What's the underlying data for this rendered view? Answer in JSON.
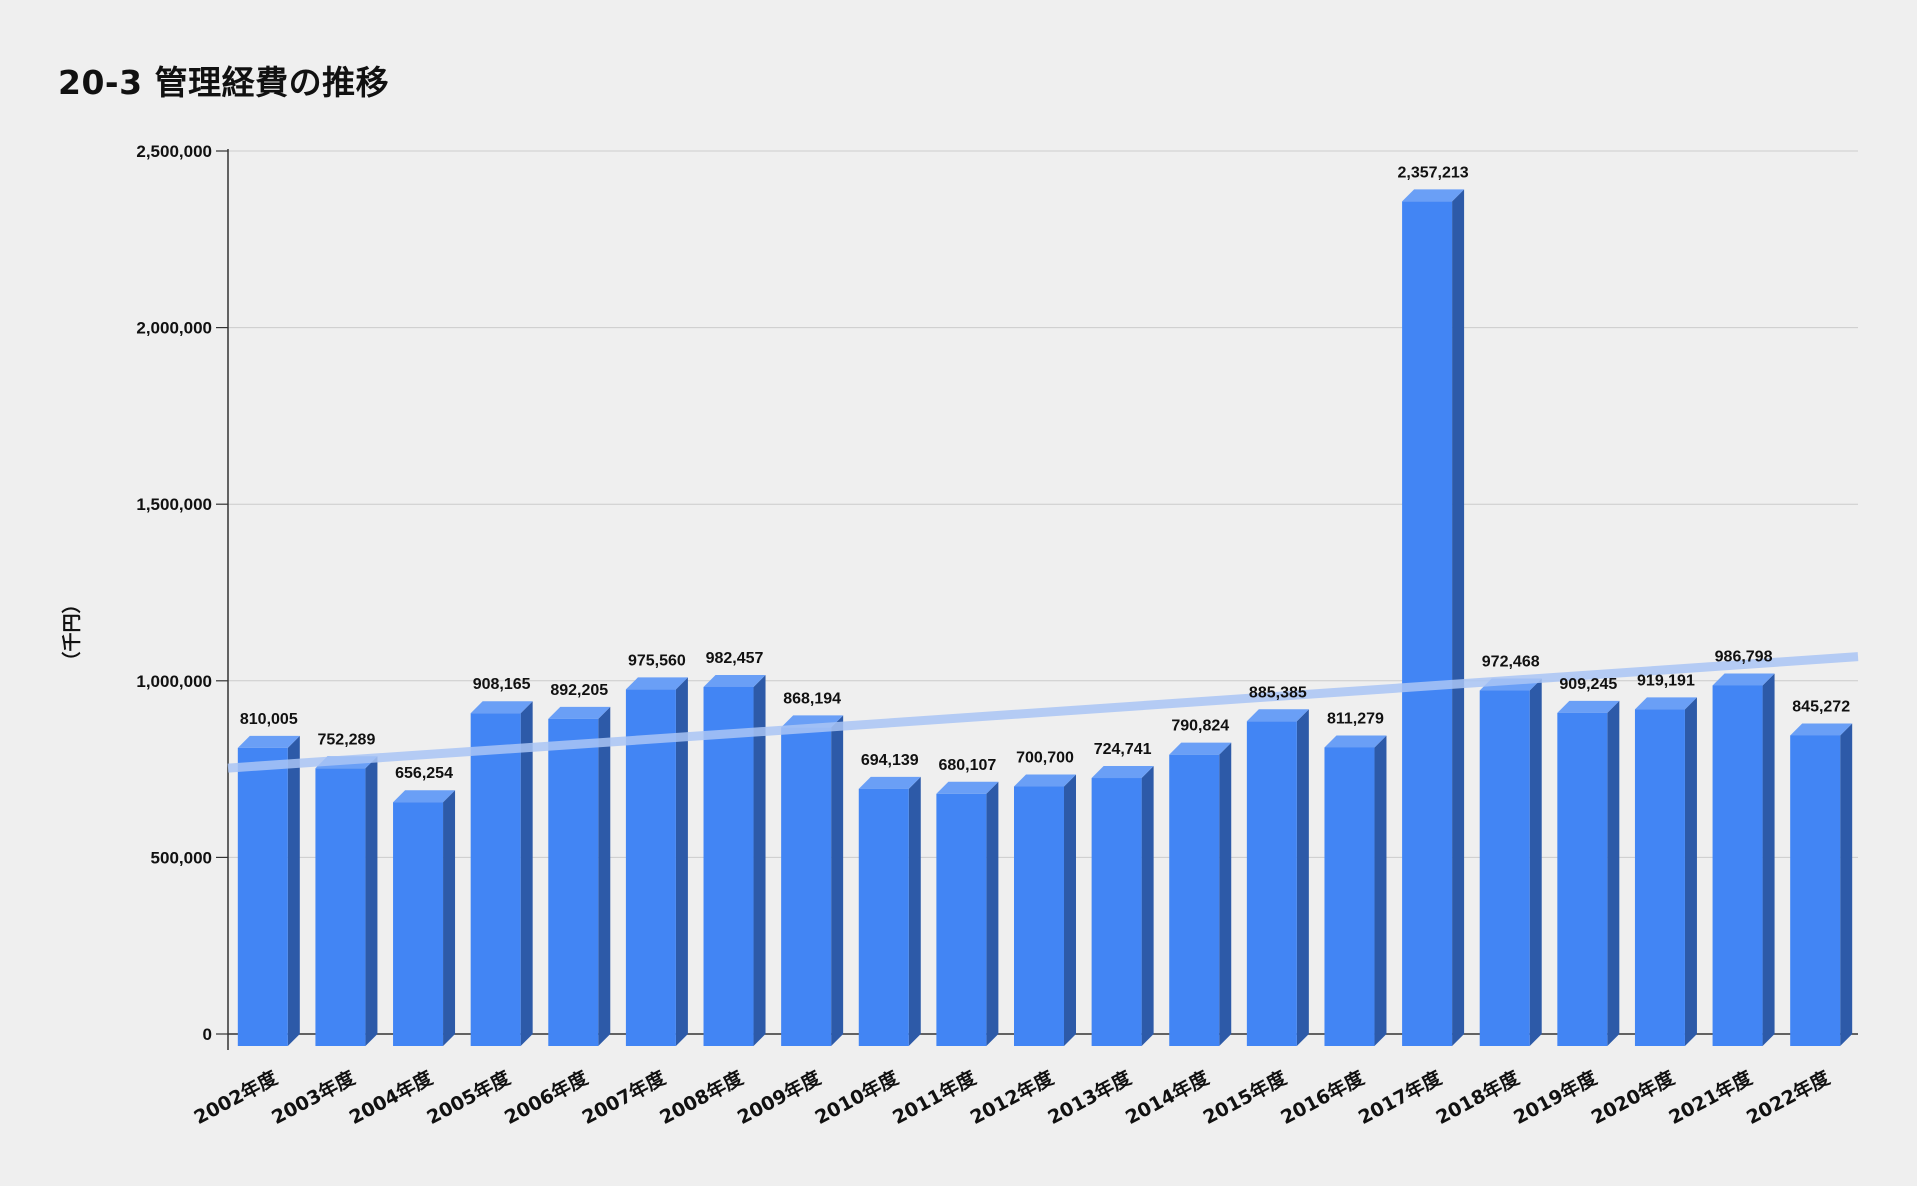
{
  "chart_data": {
    "type": "bar",
    "title": "20-3 管理経費の推移",
    "ylabel": "（千円）",
    "xlabel": "",
    "ylim": [
      0,
      2500000
    ],
    "yticks": [
      0,
      500000,
      1000000,
      1500000,
      2000000,
      2500000
    ],
    "ytick_labels": [
      "0",
      "500,000",
      "1,000,000",
      "1,500,000",
      "2,000,000",
      "2,500,000"
    ],
    "grid": true,
    "bar_style": "3d",
    "categories": [
      "2002年度",
      "2003年度",
      "2004年度",
      "2005年度",
      "2006年度",
      "2007年度",
      "2008年度",
      "2009年度",
      "2010年度",
      "2011年度",
      "2012年度",
      "2013年度",
      "2014年度",
      "2015年度",
      "2016年度",
      "2017年度",
      "2018年度",
      "2019年度",
      "2020年度",
      "2021年度",
      "2022年度"
    ],
    "values": [
      810005,
      752289,
      656254,
      908165,
      892205,
      975560,
      982457,
      868194,
      694139,
      680107,
      700700,
      724741,
      790824,
      885385,
      811279,
      2357213,
      972468,
      909245,
      919191,
      986798,
      845272
    ],
    "data_labels": [
      "810,005",
      "752,289",
      "656,254",
      "908,165",
      "892,205",
      "975,560",
      "982,457",
      "868,194",
      "694,139",
      "680,107",
      "700,700",
      "724,741",
      "790,824",
      "885,385",
      "811,279",
      "2,357,213",
      "972,468",
      "909,245",
      "919,191",
      "986,798",
      "845,272"
    ],
    "trendline": {
      "type": "linear",
      "color": "#a9c4f5"
    },
    "colors": {
      "bar_front": "#4285f4",
      "bar_side": "#2d5aa8",
      "bar_top": "#6a9ff6",
      "grid": "#cccccc",
      "axis": "#333333"
    }
  }
}
